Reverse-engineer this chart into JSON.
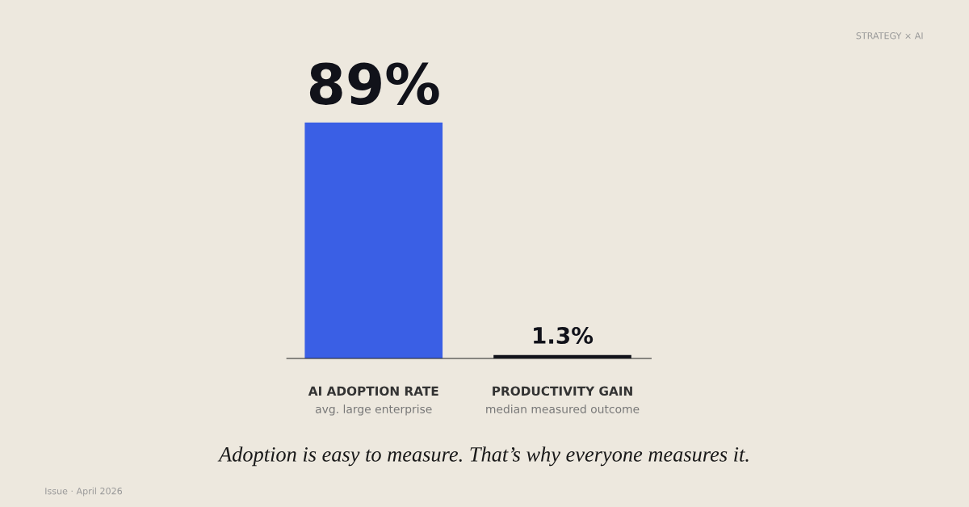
{
  "chart_data": {
    "type": "bar",
    "categories": [
      "AI ADOPTION RATE\navg. large enterprise",
      "PRODUCTIVITY GAIN\nmedian measured outcome"
    ],
    "values": [
      89,
      1.3
    ],
    "colors": [
      "#3a5fe5",
      "#11121a"
    ],
    "value_labels": [
      "89%",
      "1.3%"
    ],
    "tick_labels": "x",
    "annotations": [
      "STRATEGY × AI",
      "Adoption is easy to measure. That’s why everyone measures it.",
      "Issue · April 2026"
    ]
  }
}
